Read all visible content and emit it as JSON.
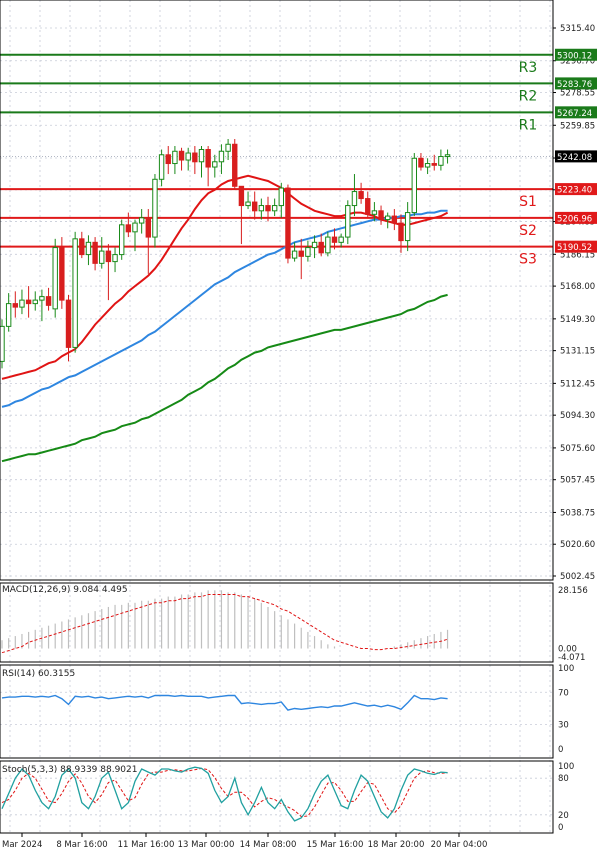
{
  "chart_data": {
    "type": "candlestick",
    "main": {
      "y_ticks": [
        "5315.40",
        "5296.70",
        "5278.55",
        "5259.85",
        "5241.15",
        "5223.00",
        "5204.85",
        "5186.15",
        "5168.00",
        "5149.30",
        "5131.15",
        "5112.45",
        "5094.30",
        "5075.60",
        "5057.45",
        "5038.75",
        "5020.60",
        "5002.45"
      ],
      "levels": [
        {
          "name": "R3",
          "value": 5300.12,
          "label": "5300.12",
          "color": "#1a7a1a"
        },
        {
          "name": "R2",
          "value": 5283.76,
          "label": "5283.76",
          "color": "#1a7a1a"
        },
        {
          "name": "R1",
          "value": 5267.24,
          "label": "5267.24",
          "color": "#1a7a1a"
        },
        {
          "name": "S1",
          "value": 5223.4,
          "label": "5223.40",
          "color": "#e0191a"
        },
        {
          "name": "S2",
          "value": 5206.96,
          "label": "5206.96",
          "color": "#e0191a"
        },
        {
          "name": "S3",
          "value": 5190.52,
          "label": "5190.52",
          "color": "#e0191a"
        }
      ],
      "current_price": 5242.08,
      "current_price_label": "5242.08",
      "ohlc": [
        [
          5125,
          5149,
          5121,
          5145
        ],
        [
          5145,
          5164,
          5142,
          5158
        ],
        [
          5158,
          5165,
          5150,
          5156
        ],
        [
          5156,
          5166,
          5152,
          5160
        ],
        [
          5160,
          5168,
          5150,
          5158
        ],
        [
          5158,
          5165,
          5154,
          5160
        ],
        [
          5160,
          5166,
          5148,
          5162
        ],
        [
          5162,
          5167,
          5154,
          5157
        ],
        [
          5155,
          5195,
          5150,
          5190
        ],
        [
          5190,
          5196,
          5155,
          5160
        ],
        [
          5160,
          5163,
          5125,
          5133
        ],
        [
          5133,
          5199,
          5130,
          5195
        ],
        [
          5195,
          5199,
          5184,
          5186
        ],
        [
          5186,
          5197,
          5180,
          5193
        ],
        [
          5193,
          5196,
          5177,
          5181
        ],
        [
          5181,
          5196,
          5178,
          5188
        ],
        [
          5188,
          5192,
          5160,
          5182
        ],
        [
          5182,
          5190,
          5176,
          5186
        ],
        [
          5186,
          5206,
          5183,
          5203
        ],
        [
          5203,
          5210,
          5196,
          5199
        ],
        [
          5199,
          5206,
          5188,
          5204
        ],
        [
          5204,
          5212,
          5198,
          5207
        ],
        [
          5207,
          5212,
          5175,
          5196
        ],
        [
          5196,
          5232,
          5190,
          5229
        ],
        [
          5229,
          5246,
          5225,
          5243
        ],
        [
          5243,
          5248,
          5232,
          5238
        ],
        [
          5238,
          5248,
          5232,
          5245
        ],
        [
          5245,
          5247,
          5234,
          5240
        ],
        [
          5240,
          5247,
          5234,
          5244
        ],
        [
          5244,
          5248,
          5232,
          5239
        ],
        [
          5239,
          5248,
          5230,
          5246
        ],
        [
          5246,
          5248,
          5225,
          5236
        ],
        [
          5236,
          5243,
          5230,
          5239
        ],
        [
          5239,
          5249,
          5232,
          5245
        ],
        [
          5245,
          5252,
          5240,
          5249
        ],
        [
          5249,
          5252,
          5223,
          5225
        ],
        [
          5225,
          5225,
          5192,
          5214
        ],
        [
          5214,
          5222,
          5212,
          5216
        ],
        [
          5216,
          5222,
          5206,
          5211
        ],
        [
          5211,
          5218,
          5206,
          5214
        ],
        [
          5214,
          5219,
          5205,
          5211
        ],
        [
          5211,
          5218,
          5208,
          5214
        ],
        [
          5214,
          5227,
          5207,
          5224
        ],
        [
          5224,
          5226,
          5181,
          5184
        ],
        [
          5184,
          5193,
          5182,
          5188
        ],
        [
          5188,
          5195,
          5172,
          5185
        ],
        [
          5185,
          5194,
          5182,
          5190
        ],
        [
          5190,
          5197,
          5184,
          5193
        ],
        [
          5193,
          5198,
          5185,
          5187
        ],
        [
          5187,
          5199,
          5185,
          5196
        ],
        [
          5196,
          5201,
          5189,
          5193
        ],
        [
          5193,
          5198,
          5190,
          5196
        ],
        [
          5196,
          5217,
          5192,
          5214
        ],
        [
          5214,
          5232,
          5208,
          5222
        ],
        [
          5222,
          5227,
          5215,
          5218
        ],
        [
          5218,
          5222,
          5207,
          5209
        ],
        [
          5209,
          5216,
          5205,
          5211
        ],
        [
          5211,
          5214,
          5203,
          5206
        ],
        [
          5206,
          5210,
          5201,
          5208
        ],
        [
          5208,
          5212,
          5200,
          5204
        ],
        [
          5204,
          5209,
          5187,
          5194
        ],
        [
          5194,
          5216,
          5188,
          5210
        ],
        [
          5210,
          5244,
          5208,
          5241
        ],
        [
          5241,
          5244,
          5234,
          5236
        ],
        [
          5236,
          5241,
          5232,
          5238
        ],
        [
          5238,
          5243,
          5234,
          5237
        ],
        [
          5237,
          5246,
          5234,
          5242
        ],
        [
          5242,
          5246,
          5238,
          5243
        ]
      ],
      "ma_fast": [
        5115,
        5116,
        5117,
        5118,
        5119,
        5120,
        5122,
        5124,
        5125,
        5128,
        5130,
        5132,
        5136,
        5141,
        5146,
        5150,
        5154,
        5158,
        5161,
        5165,
        5168,
        5171,
        5174,
        5178,
        5183,
        5189,
        5195,
        5201,
        5206,
        5212,
        5217,
        5221,
        5223,
        5226,
        5228,
        5229,
        5230,
        5231,
        5230,
        5229,
        5228,
        5226,
        5224,
        5221,
        5218,
        5215,
        5213,
        5211,
        5210,
        5209,
        5208,
        5208,
        5209,
        5210,
        5210,
        5209,
        5208,
        5206,
        5205,
        5204,
        5203,
        5203,
        5204,
        5205,
        5206,
        5207,
        5208,
        5210
      ],
      "ma_slow": [
        5099,
        5100,
        5102,
        5103,
        5105,
        5107,
        5109,
        5110,
        5112,
        5114,
        5116,
        5117,
        5119,
        5121,
        5123,
        5125,
        5127,
        5129,
        5131,
        5133,
        5135,
        5137,
        5140,
        5142,
        5145,
        5148,
        5151,
        5154,
        5157,
        5160,
        5163,
        5166,
        5169,
        5171,
        5173,
        5176,
        5178,
        5180,
        5182,
        5184,
        5186,
        5187,
        5189,
        5191,
        5193,
        5194,
        5195,
        5196,
        5197,
        5199,
        5200,
        5201,
        5202,
        5203,
        5204,
        5205,
        5206,
        5206,
        5207,
        5207,
        5208,
        5208,
        5209,
        5209,
        5210,
        5210,
        5211,
        5211
      ],
      "ma_long": [
        5068,
        5069,
        5070,
        5071,
        5072,
        5072,
        5073,
        5074,
        5075,
        5076,
        5077,
        5078,
        5080,
        5081,
        5082,
        5084,
        5085,
        5086,
        5088,
        5089,
        5090,
        5092,
        5093,
        5095,
        5097,
        5099,
        5101,
        5103,
        5106,
        5108,
        5110,
        5113,
        5115,
        5118,
        5121,
        5123,
        5126,
        5128,
        5130,
        5131,
        5133,
        5134,
        5135,
        5136,
        5137,
        5138,
        5139,
        5140,
        5141,
        5142,
        5143,
        5143,
        5144,
        5145,
        5146,
        5147,
        5148,
        5149,
        5150,
        5151,
        5152,
        5154,
        5155,
        5157,
        5159,
        5160,
        5162,
        5163
      ]
    },
    "macd": {
      "label": "MACD(12,26,9) 9.084 4.495",
      "y_ticks": [
        "28.156",
        "0.00",
        "-4.071"
      ],
      "histogram": [
        4,
        5,
        6,
        7,
        8,
        9,
        10,
        11,
        12,
        13,
        14,
        15,
        16,
        17,
        18,
        19,
        20,
        21,
        21,
        22,
        22,
        23,
        23,
        24,
        24,
        25,
        25,
        26,
        26,
        27,
        27,
        28,
        28,
        28,
        27,
        27,
        26,
        25,
        24,
        22,
        20,
        18,
        16,
        14,
        12,
        10,
        8,
        6,
        4,
        2,
        1,
        0,
        0,
        0,
        0,
        0,
        0,
        0,
        0,
        1,
        2,
        3,
        4,
        5,
        6,
        7,
        8,
        9
      ],
      "signal": [
        -2,
        -1,
        0,
        1,
        3,
        4,
        5,
        6,
        7,
        8,
        9,
        10,
        11,
        12,
        13,
        14,
        15,
        16,
        17,
        18,
        19,
        20,
        21,
        22,
        22,
        23,
        23,
        24,
        24,
        25,
        25,
        26,
        26,
        26,
        26,
        26,
        25,
        25,
        24,
        23,
        22,
        21,
        19,
        18,
        16,
        14,
        12,
        10,
        8,
        6,
        4,
        3,
        2,
        1,
        0,
        0,
        -0.5,
        -0.5,
        0,
        0,
        0.5,
        1,
        1.5,
        2,
        2.5,
        3,
        3.5,
        4.5
      ]
    },
    "rsi": {
      "label": "RSI(14) 60.3155",
      "y_ticks": [
        "100",
        "70",
        "30",
        "0"
      ],
      "values": [
        63,
        64,
        64,
        65,
        65,
        64,
        65,
        64,
        66,
        62,
        55,
        65,
        64,
        65,
        63,
        64,
        62,
        63,
        64,
        65,
        64,
        65,
        63,
        66,
        66,
        66,
        65,
        66,
        65,
        65,
        65,
        63,
        64,
        65,
        66,
        66,
        56,
        57,
        56,
        55,
        56,
        56,
        58,
        48,
        50,
        49,
        50,
        51,
        52,
        51,
        53,
        53,
        55,
        57,
        55,
        53,
        54,
        52,
        54,
        52,
        49,
        57,
        66,
        62,
        62,
        61,
        63,
        62
      ]
    },
    "stoch": {
      "label": "Stoch(5,3,3) 88.9339 88.9021",
      "y_ticks": [
        "100",
        "80",
        "20",
        "0"
      ],
      "k": [
        30,
        55,
        80,
        95,
        85,
        60,
        40,
        30,
        50,
        85,
        95,
        80,
        40,
        30,
        50,
        80,
        90,
        60,
        30,
        40,
        75,
        95,
        90,
        85,
        95,
        95,
        92,
        90,
        95,
        98,
        96,
        88,
        60,
        40,
        50,
        80,
        40,
        20,
        40,
        65,
        40,
        30,
        45,
        25,
        10,
        15,
        30,
        55,
        75,
        85,
        60,
        35,
        30,
        60,
        85,
        75,
        50,
        25,
        15,
        30,
        60,
        85,
        95,
        92,
        88,
        86,
        90,
        89
      ],
      "d": [
        40,
        45,
        60,
        80,
        88,
        80,
        62,
        43,
        40,
        55,
        75,
        87,
        72,
        50,
        40,
        53,
        73,
        77,
        60,
        43,
        48,
        70,
        87,
        90,
        90,
        93,
        94,
        92,
        92,
        94,
        96,
        94,
        81,
        63,
        50,
        57,
        57,
        47,
        33,
        42,
        48,
        45,
        38,
        33,
        27,
        17,
        18,
        33,
        53,
        72,
        73,
        60,
        42,
        42,
        58,
        73,
        70,
        50,
        30,
        23,
        35,
        58,
        80,
        90,
        92,
        89,
        88,
        89
      ]
    },
    "x_ticks": [
      "Mar 2024",
      "8 Mar 16:00",
      "11 Mar 16:00",
      "13 Mar 00:00",
      "14 Mar 08:00",
      "15 Mar 16:00",
      "18 Mar 20:00",
      "20 Mar 04:00"
    ],
    "colors": {
      "up": "#1a8a1a",
      "down": "#d81e1e",
      "ma_fast": "#e01414",
      "ma_slow": "#2e86e0",
      "ma_long": "#168a16",
      "macd_signal": "#e01414",
      "macd_hist": "#bfbfbf",
      "rsi": "#2e86e0",
      "stoch_k": "#20a0a0",
      "stoch_d": "#e01414",
      "resistance": "#1a7a1a",
      "support": "#e0191a",
      "grid": "#c8ccd8"
    }
  }
}
